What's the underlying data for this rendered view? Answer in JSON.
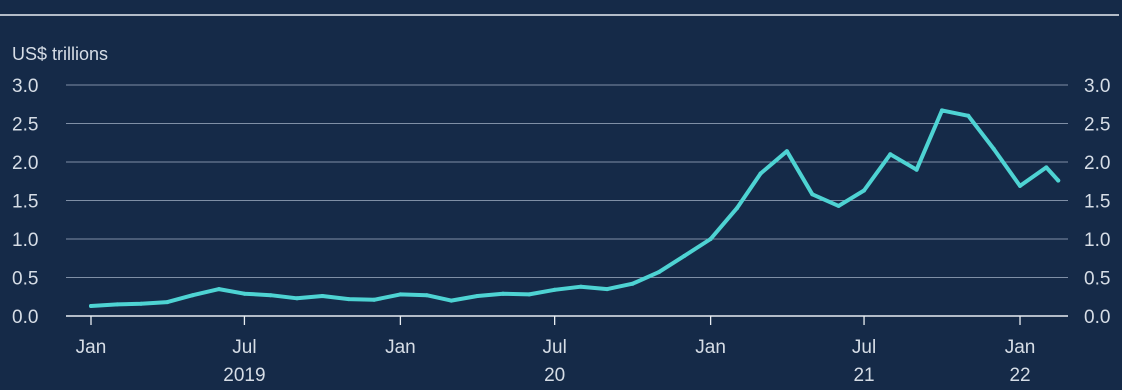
{
  "chart_data": {
    "type": "line",
    "unit_label": "US$ trillions",
    "ylim": [
      0,
      3.0
    ],
    "yticks": [
      "0.0",
      "0.5",
      "1.0",
      "1.5",
      "2.0",
      "2.5",
      "3.0"
    ],
    "ytick_values": [
      0,
      0.5,
      1.0,
      1.5,
      2.0,
      2.5,
      3.0
    ],
    "grid": true,
    "dual_y_axis": true,
    "xticks": [
      {
        "label": "Jan",
        "year": "",
        "date": "2019-01"
      },
      {
        "label": "Jul",
        "year": "2019",
        "date": "2019-07"
      },
      {
        "label": "Jan",
        "year": "",
        "date": "2020-01"
      },
      {
        "label": "Jul",
        "year": "20",
        "date": "2020-07"
      },
      {
        "label": "Jan",
        "year": "",
        "date": "2021-01"
      },
      {
        "label": "Jul",
        "year": "21",
        "date": "2021-07"
      },
      {
        "label": "Jan",
        "year": "22",
        "date": "2022-01"
      }
    ],
    "series": [
      {
        "color": "#4ED3D3",
        "points": [
          {
            "x": "2019-01",
            "y": 0.13
          },
          {
            "x": "2019-02",
            "y": 0.15
          },
          {
            "x": "2019-03",
            "y": 0.16
          },
          {
            "x": "2019-04",
            "y": 0.18
          },
          {
            "x": "2019-05",
            "y": 0.27
          },
          {
            "x": "2019-06",
            "y": 0.35
          },
          {
            "x": "2019-07",
            "y": 0.29
          },
          {
            "x": "2019-08",
            "y": 0.27
          },
          {
            "x": "2019-09",
            "y": 0.23
          },
          {
            "x": "2019-10",
            "y": 0.26
          },
          {
            "x": "2019-11",
            "y": 0.22
          },
          {
            "x": "2019-12",
            "y": 0.21
          },
          {
            "x": "2020-01",
            "y": 0.28
          },
          {
            "x": "2020-02",
            "y": 0.27
          },
          {
            "x": "2020-03",
            "y": 0.2
          },
          {
            "x": "2020-04",
            "y": 0.26
          },
          {
            "x": "2020-05",
            "y": 0.29
          },
          {
            "x": "2020-06",
            "y": 0.28
          },
          {
            "x": "2020-07",
            "y": 0.34
          },
          {
            "x": "2020-08",
            "y": 0.38
          },
          {
            "x": "2020-09",
            "y": 0.35
          },
          {
            "x": "2020-10",
            "y": 0.42
          },
          {
            "x": "2020-11",
            "y": 0.57
          },
          {
            "x": "2020-12",
            "y": 0.78
          },
          {
            "x": "2021-01",
            "y": 1.0
          },
          {
            "x": "2021-02",
            "y": 1.4
          },
          {
            "x": "2021-03",
            "y": 1.85
          },
          {
            "x": "2021-04",
            "y": 2.14
          },
          {
            "x": "2021-05",
            "y": 1.58
          },
          {
            "x": "2021-06",
            "y": 1.43
          },
          {
            "x": "2021-07",
            "y": 1.63
          },
          {
            "x": "2021-08",
            "y": 2.1
          },
          {
            "x": "2021-09",
            "y": 1.9
          },
          {
            "x": "2021-10",
            "y": 2.67
          },
          {
            "x": "2021-11",
            "y": 2.6
          },
          {
            "x": "2021-12",
            "y": 2.17
          },
          {
            "x": "2022-01",
            "y": 1.69
          },
          {
            "x": "2022-02",
            "y": 1.93
          },
          {
            "x": "2022-02-15",
            "y": 1.76
          }
        ]
      }
    ]
  },
  "colors": {
    "background": "#152A48",
    "text": "#D6DDE6",
    "grid": "#7F8FA6",
    "baseline": "#E8EDF2",
    "line": "#4ED3D3"
  }
}
